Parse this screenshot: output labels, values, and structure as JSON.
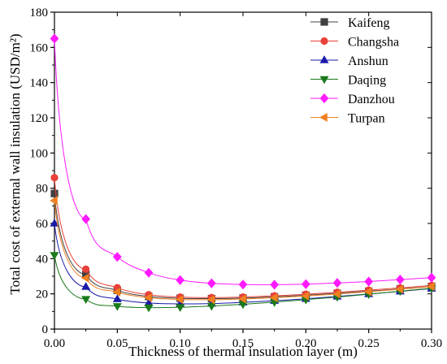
{
  "chart_data": {
    "type": "line",
    "xlabel": "Thickness of thermal insulation layer (m)",
    "ylabel": "Total cost of  external wall insulation (USD/m²)",
    "xlim": [
      0,
      0.3
    ],
    "ylim": [
      0,
      180
    ],
    "xticks": [
      0.0,
      0.05,
      0.1,
      0.15,
      0.2,
      0.25,
      0.3
    ],
    "xtick_labels": [
      "0.00",
      "0.05",
      "0.10",
      "0.15",
      "0.20",
      "0.25",
      "0.30"
    ],
    "yticks": [
      0,
      20,
      40,
      60,
      80,
      100,
      120,
      140,
      160,
      180
    ],
    "ytick_labels": [
      "0",
      "20",
      "40",
      "60",
      "80",
      "100",
      "120",
      "140",
      "160",
      "180"
    ],
    "grid": false,
    "legend_position": "top-right",
    "x": [
      0,
      0.025,
      0.05,
      0.075,
      0.1,
      0.125,
      0.15,
      0.175,
      0.2,
      0.225,
      0.25,
      0.275,
      0.3
    ],
    "series": [
      {
        "name": "Kaifeng",
        "color": "#404040",
        "marker": "square",
        "values": [
          77,
          31,
          22,
          18.5,
          17.5,
          17.3,
          17.6,
          18.3,
          19.2,
          20.3,
          21.5,
          22.8,
          24.2
        ]
      },
      {
        "name": "Changsha",
        "color": "#e8413a",
        "marker": "circle",
        "values": [
          86,
          34,
          23.5,
          19.5,
          18.2,
          17.9,
          18.2,
          18.9,
          19.8,
          20.9,
          22.1,
          23.4,
          24.8
        ]
      },
      {
        "name": "Anshun",
        "color": "#1a1aa8",
        "marker": "triangle-up",
        "values": [
          60,
          24,
          17,
          14.8,
          14.3,
          14.5,
          15.2,
          16.1,
          17.2,
          18.5,
          19.9,
          21.4,
          23
        ]
      },
      {
        "name": "Daqing",
        "color": "#1a7a1a",
        "marker": "triangle-down",
        "values": [
          42,
          17,
          13,
          12.2,
          12.4,
          13.1,
          14.1,
          15.3,
          16.7,
          18.2,
          19.8,
          21.5,
          23.2
        ]
      },
      {
        "name": "Danzhou",
        "color": "#ff1aff",
        "marker": "diamond",
        "values": [
          165,
          62.5,
          41,
          32,
          27.8,
          26,
          25.3,
          25.2,
          25.5,
          26.2,
          27,
          28.1,
          29.2
        ]
      },
      {
        "name": "Turpan",
        "color": "#f08020",
        "marker": "triangle-left",
        "values": [
          73,
          29,
          21,
          17.8,
          16.8,
          16.7,
          17.1,
          17.8,
          18.8,
          19.9,
          21.2,
          22.6,
          24.1
        ]
      }
    ]
  }
}
